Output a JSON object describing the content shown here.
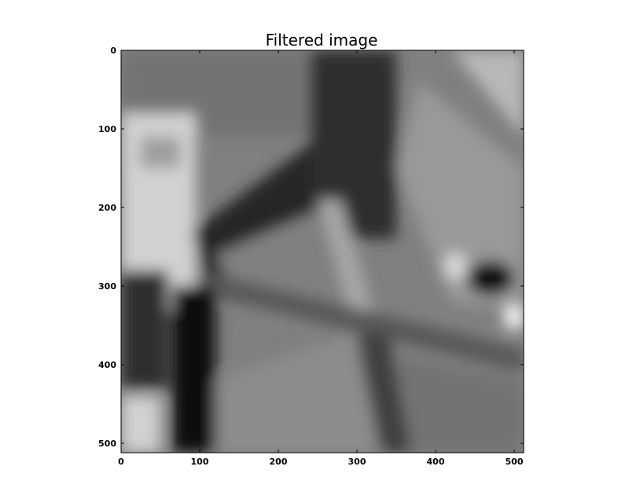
{
  "chart_data": {
    "type": "heatmap",
    "title": "Filtered image",
    "xlabel": "",
    "ylabel": "",
    "colormap": "gray",
    "xlim": [
      0,
      512
    ],
    "ylim": [
      512,
      0
    ],
    "x_ticks": [
      0,
      100,
      200,
      300,
      400,
      500
    ],
    "y_ticks": [
      0,
      100,
      200,
      300,
      400,
      500
    ],
    "x_tick_labels": [
      "0",
      "100",
      "200",
      "300",
      "400",
      "500"
    ],
    "y_tick_labels": [
      "0",
      "100",
      "200",
      "300",
      "400",
      "500"
    ],
    "grid": false,
    "legend": "none",
    "image": {
      "width": 512,
      "height": 512,
      "background_intensity": 0.5,
      "regions": [
        {
          "name": "upper-left-gray-wall",
          "shape": "rect",
          "x": [
            0,
            260
          ],
          "y": [
            0,
            110
          ],
          "intensity": 0.45
        },
        {
          "name": "bright-sign-frame",
          "shape": "rect",
          "x": [
            0,
            95
          ],
          "y": [
            80,
            330
          ],
          "intensity": 0.82
        },
        {
          "name": "bright-sign-inner",
          "shape": "rect",
          "x": [
            25,
            75
          ],
          "y": [
            110,
            150
          ],
          "intensity": 0.62
        },
        {
          "name": "dark-diagonal-band",
          "shape": "polygon",
          "points": [
            [
              90,
              230
            ],
            [
              240,
              120
            ],
            [
              260,
              200
            ],
            [
              110,
              300
            ]
          ],
          "intensity": 0.15
        },
        {
          "name": "dark-upper-center",
          "shape": "rect",
          "x": [
            240,
            350
          ],
          "y": [
            0,
            240
          ],
          "intensity": 0.18
        },
        {
          "name": "right-panel",
          "shape": "polygon",
          "points": [
            [
              350,
              150
            ],
            [
              380,
              40
            ],
            [
              512,
              150
            ],
            [
              512,
              330
            ],
            [
              420,
              320
            ]
          ],
          "intensity": 0.6
        },
        {
          "name": "upper-right-corner",
          "shape": "polygon",
          "points": [
            [
              420,
              0
            ],
            [
              512,
              0
            ],
            [
              512,
              110
            ]
          ],
          "intensity": 0.72
        },
        {
          "name": "center-gray",
          "shape": "polygon",
          "points": [
            [
              120,
              260
            ],
            [
              260,
              200
            ],
            [
              300,
              330
            ],
            [
              170,
              350
            ]
          ],
          "intensity": 0.5
        },
        {
          "name": "vertical-light-strip",
          "shape": "polygon",
          "points": [
            [
              250,
              190
            ],
            [
              280,
              190
            ],
            [
              320,
              330
            ],
            [
              290,
              330
            ]
          ],
          "intensity": 0.65
        },
        {
          "name": "dark-right-blob",
          "shape": "ellipse",
          "cx": 470,
          "cy": 290,
          "rx": 30,
          "ry": 22,
          "intensity": 0.05
        },
        {
          "name": "bright-right-spot",
          "shape": "ellipse",
          "cx": 500,
          "cy": 340,
          "rx": 14,
          "ry": 16,
          "intensity": 0.95
        },
        {
          "name": "bright-mid-spot",
          "shape": "ellipse",
          "cx": 425,
          "cy": 275,
          "rx": 14,
          "ry": 18,
          "intensity": 0.85
        },
        {
          "name": "diagonal-rail",
          "shape": "polygon",
          "points": [
            [
              100,
              280
            ],
            [
              512,
              380
            ],
            [
              512,
              410
            ],
            [
              100,
              310
            ]
          ],
          "intensity": 0.35
        },
        {
          "name": "lower-left-dark",
          "shape": "rect",
          "x": [
            0,
            60
          ],
          "y": [
            280,
            430
          ],
          "intensity": 0.18
        },
        {
          "name": "lower-left-bright",
          "shape": "rect",
          "x": [
            0,
            50
          ],
          "y": [
            440,
            512
          ],
          "intensity": 0.82
        },
        {
          "name": "dark-vertical-post",
          "shape": "rect",
          "x": [
            65,
            120
          ],
          "y": [
            300,
            512
          ],
          "intensity": 0.05
        },
        {
          "name": "lower-center-gray",
          "shape": "polygon",
          "points": [
            [
              120,
              420
            ],
            [
              300,
              360
            ],
            [
              360,
              512
            ],
            [
              120,
              512
            ]
          ],
          "intensity": 0.55
        },
        {
          "name": "lower-right-gray",
          "shape": "polygon",
          "points": [
            [
              300,
              380
            ],
            [
              512,
              420
            ],
            [
              512,
              512
            ],
            [
              330,
              512
            ]
          ],
          "intensity": 0.45
        },
        {
          "name": "dark-lower-diagonal",
          "shape": "polygon",
          "points": [
            [
              300,
              360
            ],
            [
              340,
              360
            ],
            [
              370,
              512
            ],
            [
              330,
              512
            ]
          ],
          "intensity": 0.25
        }
      ]
    }
  }
}
